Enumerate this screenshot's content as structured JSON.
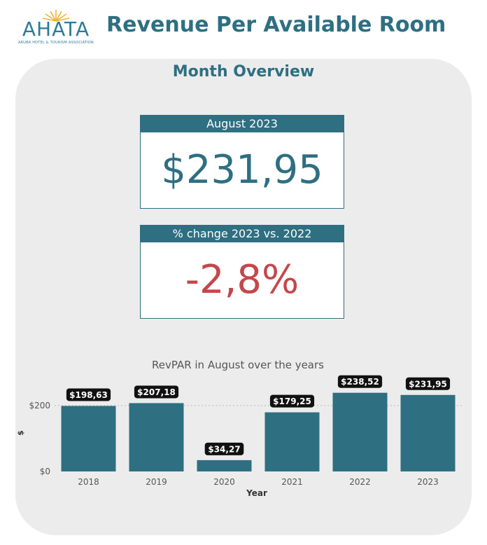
{
  "header": {
    "logo_text": "AHATA",
    "logo_subtitle": "ARUBA HOTEL & TOURISM ASSOCIATION",
    "title": "Revenue Per Available Room"
  },
  "overview": {
    "title": "Month Overview",
    "kpi_month": {
      "label": "August 2023",
      "value": "$231,95"
    },
    "kpi_change": {
      "label": "% change 2023 vs. 2022",
      "value": "-2,8%"
    }
  },
  "colors": {
    "bar": "#2e6f82",
    "title": "#2e6f82",
    "negative": "#c4474a",
    "panel": "#ececec",
    "label_bg": "#111111"
  },
  "chart_data": {
    "type": "bar",
    "title": "RevPAR in August over the years",
    "xlabel": "Year",
    "ylabel": "$",
    "categories": [
      "2018",
      "2019",
      "2020",
      "2021",
      "2022",
      "2023"
    ],
    "values": [
      198.63,
      207.18,
      34.27,
      179.25,
      238.52,
      231.95
    ],
    "data_labels": [
      "$198,63",
      "$207,18",
      "$34,27",
      "$179,25",
      "$238,52",
      "$231,95"
    ],
    "y_ticks": [
      0,
      200
    ],
    "y_tick_labels": [
      "$0",
      "$200"
    ],
    "ylim": [
      0,
      240
    ],
    "grid": "dotted horizontal"
  }
}
